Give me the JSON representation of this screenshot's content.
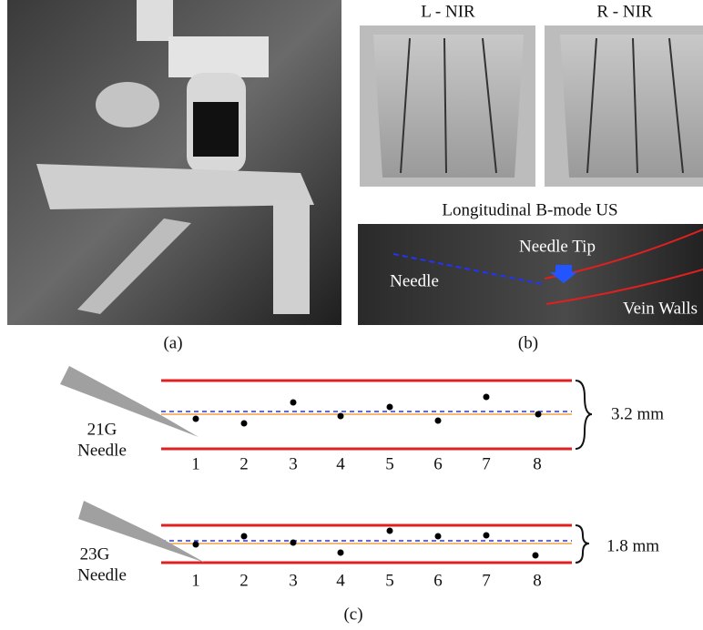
{
  "panel_a": {
    "caption": "(a)"
  },
  "panel_b": {
    "left_label": "L - NIR",
    "right_label": "R - NIR",
    "us_title": "Longitudinal B-mode US",
    "needle_tip": "Needle Tip",
    "needle": "Needle",
    "vein_walls": "Vein Walls",
    "caption": "(b)"
  },
  "panel_c": {
    "top": {
      "gauge": "21G",
      "needle": "Needle",
      "width": "3.2 mm",
      "positions": [
        1,
        2,
        3,
        4,
        5,
        6,
        7,
        8
      ]
    },
    "bottom": {
      "gauge": "23G",
      "needle": "Needle",
      "width": "1.8 mm",
      "positions": [
        1,
        2,
        3,
        4,
        5,
        6,
        7,
        8
      ]
    },
    "caption": "(c)"
  }
}
